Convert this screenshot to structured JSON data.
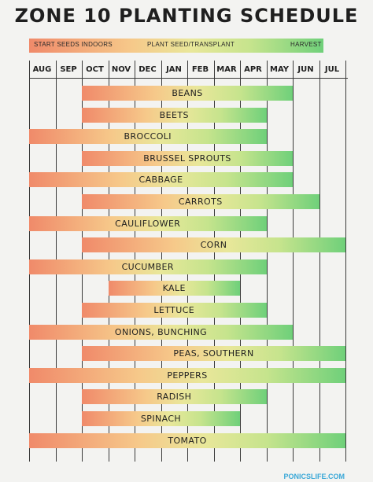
{
  "title": "ZONE 10 PLANTING SCHEDULE",
  "legend": {
    "start": "START SEEDS INDOORS",
    "plant": "PLANT SEED/TRANSPLANT",
    "harvest": "HARVEST"
  },
  "footer": "PONICSLIFE.COM",
  "colors": {
    "start": "#f08a6a",
    "mid": "#e9e79a",
    "harvest": "#6fd07a",
    "grid": "#3a3a3a",
    "background": "#f3f3f1"
  },
  "chart_data": {
    "type": "gantt",
    "title": "ZONE 10 PLANTING SCHEDULE",
    "months": [
      "AUG",
      "SEP",
      "OCT",
      "NOV",
      "DEC",
      "JAN",
      "FEB",
      "MAR",
      "APR",
      "MAY",
      "JUN",
      "JUL"
    ],
    "legend": [
      "START SEEDS INDOORS",
      "PLANT SEED/TRANSPLANT",
      "HARVEST"
    ],
    "crops": [
      {
        "name": "BEANS",
        "start": "OCT",
        "end": "MAY"
      },
      {
        "name": "BEETS",
        "start": "OCT",
        "end": "APR"
      },
      {
        "name": "BROCCOLI",
        "start": "AUG",
        "end": "APR"
      },
      {
        "name": "BRUSSEL SPROUTS",
        "start": "OCT",
        "end": "MAY"
      },
      {
        "name": "CABBAGE",
        "start": "AUG",
        "end": "MAY"
      },
      {
        "name": "CARROTS",
        "start": "OCT",
        "end": "JUN"
      },
      {
        "name": "CAULIFLOWER",
        "start": "AUG",
        "end": "APR"
      },
      {
        "name": "CORN",
        "start": "OCT",
        "end": "JUL"
      },
      {
        "name": "CUCUMBER",
        "start": "AUG",
        "end": "APR"
      },
      {
        "name": "KALE",
        "start": "NOV",
        "end": "MAR"
      },
      {
        "name": "LETTUCE",
        "start": "OCT",
        "end": "APR"
      },
      {
        "name": "ONIONS, BUNCHING",
        "start": "AUG",
        "end": "MAY"
      },
      {
        "name": "PEAS, SOUTHERN",
        "start": "OCT",
        "end": "JUL"
      },
      {
        "name": "PEPPERS",
        "start": "AUG",
        "end": "JUL"
      },
      {
        "name": "RADISH",
        "start": "OCT",
        "end": "APR"
      },
      {
        "name": "SPINACH",
        "start": "OCT",
        "end": "MAR"
      },
      {
        "name": "TOMATO",
        "start": "AUG",
        "end": "JUL"
      }
    ]
  }
}
